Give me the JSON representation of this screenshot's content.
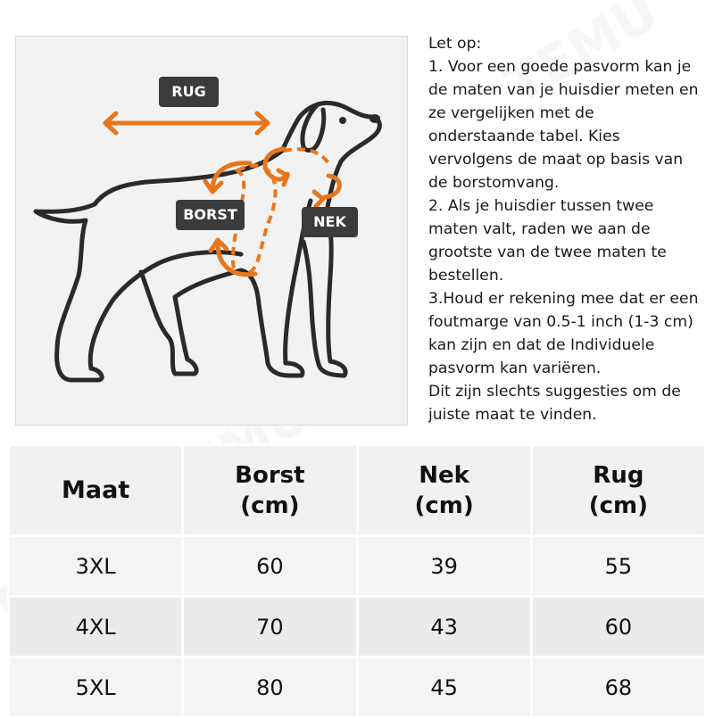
{
  "labels": {
    "rug": "RUG",
    "borst": "BORST",
    "nek": "NEK"
  },
  "notes": [
    "Let op:",
    "1. Voor een goede pasvorm kan je",
    "de maten van je huisdier meten en",
    "ze vergelijken met de",
    "onderstaande tabel. Kies",
    "vervolgens de maat op basis van",
    "de borstomvang.",
    "2. Als je huisdier tussen twee",
    "maten valt, raden we aan de",
    "grootste van de twee maten te",
    "bestellen.",
    "3.Houd er rekening mee dat er een",
    "foutmarge van 0.5-1 inch (1-3 cm)",
    "kan zijn en dat de Individuele",
    "pasvorm kan variëren.",
    "Dit zijn slechts suggesties om de",
    "juiste maat te vinden."
  ],
  "table": {
    "headers": [
      {
        "line1": "Maat",
        "line2": ""
      },
      {
        "line1": "Borst",
        "line2": "(cm)"
      },
      {
        "line1": "Nek",
        "line2": "(cm)"
      },
      {
        "line1": "Rug",
        "line2": "(cm)"
      }
    ],
    "rows": [
      [
        "3XL",
        "60",
        "39",
        "55"
      ],
      [
        "4XL",
        "70",
        "43",
        "60"
      ],
      [
        "5XL",
        "80",
        "45",
        "68"
      ]
    ]
  },
  "watermark": "TEMU",
  "colors": {
    "accent": "#e8761c",
    "label_bg": "#3b3b3b",
    "outline": "#2a2a2a"
  }
}
